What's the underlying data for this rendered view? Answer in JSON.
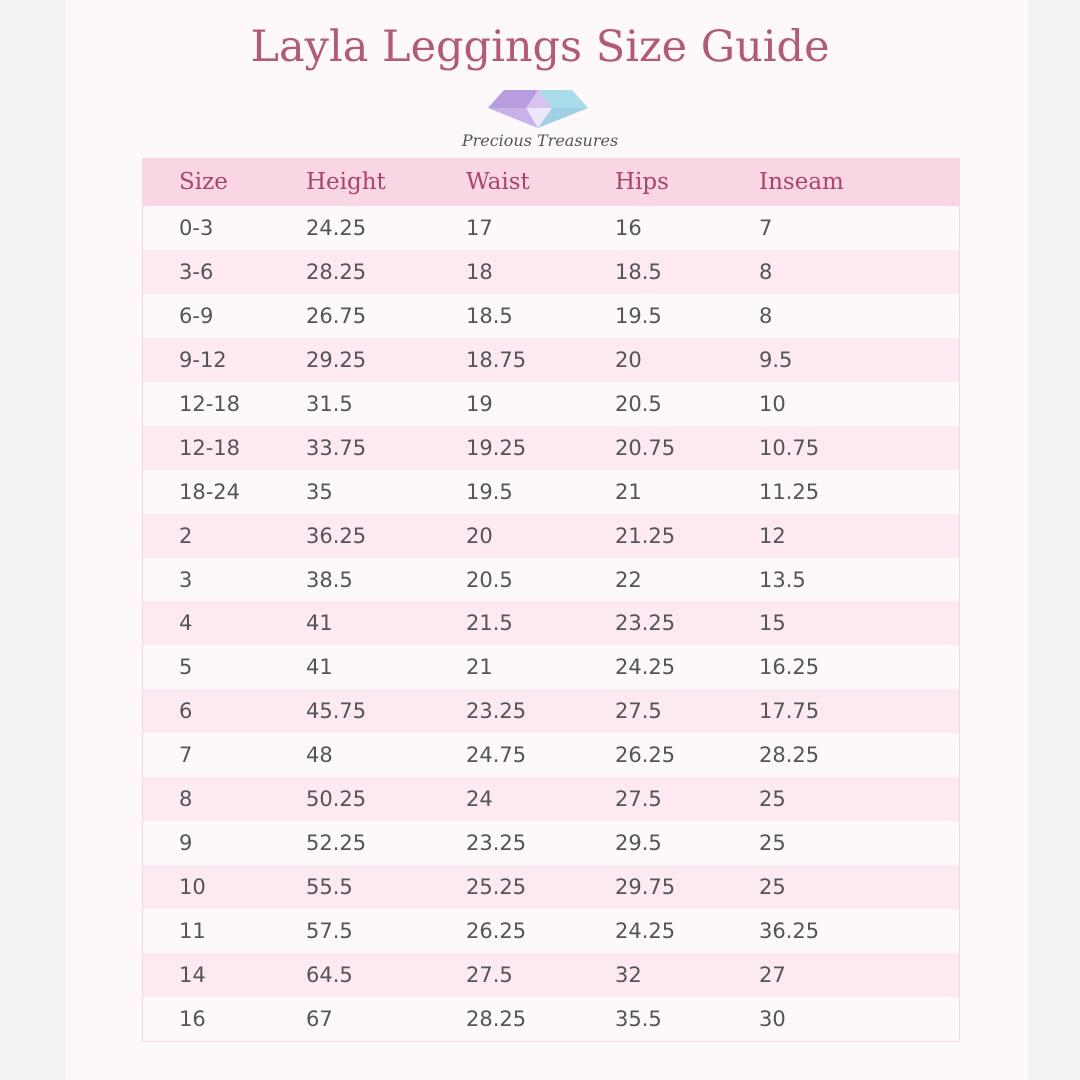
{
  "header": {
    "title": "Layla Leggings Size Guide",
    "brand": "Precious Treasures"
  },
  "table": {
    "columns": [
      "Size",
      "Height",
      "Waist",
      "Hips",
      "Inseam"
    ],
    "rows": [
      [
        "0-3",
        "24.25",
        "17",
        "16",
        "7"
      ],
      [
        "3-6",
        "28.25",
        "18",
        "18.5",
        "8"
      ],
      [
        "6-9",
        "26.75",
        "18.5",
        "19.5",
        "8"
      ],
      [
        "9-12",
        "29.25",
        "18.75",
        "20",
        "9.5"
      ],
      [
        "12-18",
        "31.5",
        "19",
        "20.5",
        "10"
      ],
      [
        "12-18",
        "33.75",
        "19.25",
        "20.75",
        "10.75"
      ],
      [
        "18-24",
        "35",
        "19.5",
        "21",
        "11.25"
      ],
      [
        "2",
        "36.25",
        "20",
        "21.25",
        "12"
      ],
      [
        "3",
        "38.5",
        "20.5",
        "22",
        "13.5"
      ],
      [
        "4",
        "41",
        "21.5",
        "23.25",
        "15"
      ],
      [
        "5",
        "41",
        "21",
        "24.25",
        "16.25"
      ],
      [
        "6",
        "45.75",
        "23.25",
        "27.5",
        "17.75"
      ],
      [
        "7",
        "48",
        "24.75",
        "26.25",
        "28.25"
      ],
      [
        "8",
        "50.25",
        "24",
        "27.5",
        "25"
      ],
      [
        "9",
        "52.25",
        "23.25",
        "29.5",
        "25"
      ],
      [
        "10",
        "55.5",
        "25.25",
        "29.75",
        "25"
      ],
      [
        "11",
        "57.5",
        "26.25",
        "24.25",
        "36.25"
      ],
      [
        "14",
        "64.5",
        "27.5",
        "32",
        "27"
      ],
      [
        "16",
        "67",
        "28.25",
        "35.5",
        "30"
      ]
    ]
  }
}
